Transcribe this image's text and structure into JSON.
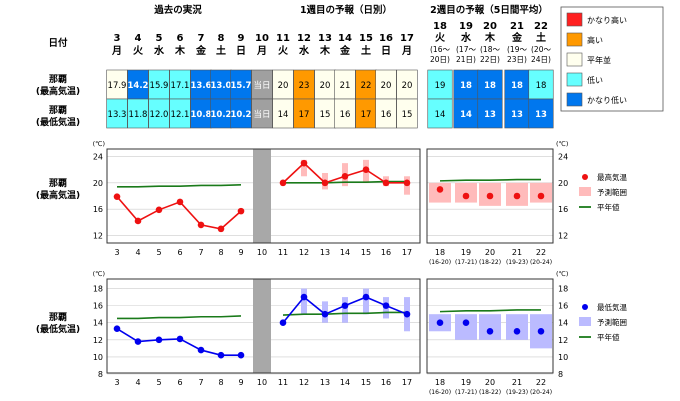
{
  "header": {
    "past_label": "過去の実況",
    "week1_label": "1週目の予報（日別）",
    "week2_label": "2週目の予報（5日間平均）",
    "date_label": "日付"
  },
  "days": [
    {
      "day": "3",
      "wd": "月"
    },
    {
      "day": "4",
      "wd": "火"
    },
    {
      "day": "5",
      "wd": "水"
    },
    {
      "day": "6",
      "wd": "木"
    },
    {
      "day": "7",
      "wd": "金"
    },
    {
      "day": "8",
      "wd": "土"
    },
    {
      "day": "9",
      "wd": "日"
    },
    {
      "day": "10",
      "wd": "月"
    },
    {
      "day": "11",
      "wd": "火"
    },
    {
      "day": "12",
      "wd": "水"
    },
    {
      "day": "13",
      "wd": "木"
    },
    {
      "day": "14",
      "wd": "金"
    },
    {
      "day": "15",
      "wd": "土"
    },
    {
      "day": "16",
      "wd": "日"
    },
    {
      "day": "17",
      "wd": "月"
    }
  ],
  "week2_days": [
    {
      "day": "18",
      "wd": "火",
      "range_a": "(16〜",
      "range_b": "20日)",
      "axis_range": "(16-20)"
    },
    {
      "day": "19",
      "wd": "水",
      "range_a": "(17〜",
      "range_b": "21日)",
      "axis_range": "(17-21)"
    },
    {
      "day": "20",
      "wd": "木",
      "range_a": "(18〜",
      "range_b": "22日)",
      "axis_range": "(18-22)"
    },
    {
      "day": "21",
      "wd": "金",
      "range_a": "(19〜",
      "range_b": "23日)",
      "axis_range": "(19-23)"
    },
    {
      "day": "22",
      "wd": "土",
      "range_a": "(20〜",
      "range_b": "24日)",
      "axis_range": "(20-24)"
    }
  ],
  "table": {
    "max_label": [
      "那覇",
      "(最高気温)"
    ],
    "min_label": [
      "那覇",
      "(最低気温)"
    ],
    "today_text": "当日",
    "max_cells": [
      {
        "v": "17.9",
        "c": "normal"
      },
      {
        "v": "14.2",
        "c": "vlow"
      },
      {
        "v": "15.9",
        "c": "low"
      },
      {
        "v": "17.1",
        "c": "low"
      },
      {
        "v": "13.6",
        "c": "vlow"
      },
      {
        "v": "13.0",
        "c": "vlow"
      },
      {
        "v": "15.7",
        "c": "vlow"
      },
      {
        "v": "当日",
        "c": "today"
      },
      {
        "v": "20",
        "c": "normal"
      },
      {
        "v": "23",
        "c": "high"
      },
      {
        "v": "20",
        "c": "normal"
      },
      {
        "v": "21",
        "c": "normal"
      },
      {
        "v": "22",
        "c": "high"
      },
      {
        "v": "20",
        "c": "normal"
      },
      {
        "v": "20",
        "c": "normal"
      }
    ],
    "min_cells": [
      {
        "v": "13.3",
        "c": "low"
      },
      {
        "v": "11.8",
        "c": "low"
      },
      {
        "v": "12.0",
        "c": "low"
      },
      {
        "v": "12.1",
        "c": "low"
      },
      {
        "v": "10.8",
        "c": "vlow"
      },
      {
        "v": "10.2",
        "c": "vlow"
      },
      {
        "v": "10.2",
        "c": "vlow"
      },
      {
        "v": "当日",
        "c": "today"
      },
      {
        "v": "14",
        "c": "normal"
      },
      {
        "v": "17",
        "c": "high"
      },
      {
        "v": "15",
        "c": "normal"
      },
      {
        "v": "16",
        "c": "normal"
      },
      {
        "v": "17",
        "c": "high"
      },
      {
        "v": "16",
        "c": "normal"
      },
      {
        "v": "15",
        "c": "normal"
      }
    ],
    "week2_max_cells": [
      {
        "v": "19",
        "c": "low"
      },
      {
        "v": "18",
        "c": "vlow"
      },
      {
        "v": "18",
        "c": "vlow"
      },
      {
        "v": "18",
        "c": "vlow"
      },
      {
        "v": "18",
        "c": "low"
      }
    ],
    "week2_min_cells": [
      {
        "v": "14",
        "c": "low"
      },
      {
        "v": "14",
        "c": "vlow"
      },
      {
        "v": "13",
        "c": "vlow"
      },
      {
        "v": "13",
        "c": "vlow"
      },
      {
        "v": "13",
        "c": "vlow"
      }
    ]
  },
  "legend": {
    "title": "",
    "items": [
      {
        "label": "かなり高い",
        "key": "vhigh"
      },
      {
        "label": "高い",
        "key": "high"
      },
      {
        "label": "平年並",
        "key": "normal"
      },
      {
        "label": "低い",
        "key": "low"
      },
      {
        "label": "かなり低い",
        "key": "vlow"
      }
    ]
  },
  "colors": {
    "vhigh": "#ff2020",
    "high": "#ff9900",
    "normal": "#ffffee",
    "low": "#66ffff",
    "vlow": "#0077ee",
    "today": "#a0a0a0",
    "max_series": "#ee1111",
    "min_series": "#0000ee",
    "normal_line": "#1a7a1a",
    "max_band": "#ffbbbb",
    "min_band": "#bbbbff",
    "frame": "#333333",
    "grid": "#cccccc"
  },
  "chart_data": [
    {
      "type": "line",
      "title": "那覇(最高気温)",
      "unit": "(℃)",
      "ylim": [
        11,
        25
      ],
      "yticks": [
        12,
        16,
        20,
        24
      ],
      "x": [
        "3",
        "4",
        "5",
        "6",
        "7",
        "8",
        "9",
        "10",
        "11",
        "12",
        "13",
        "14",
        "15",
        "16",
        "17"
      ],
      "observed": [
        17.9,
        14.2,
        15.9,
        17.1,
        13.6,
        13.0,
        15.7,
        null,
        null,
        null,
        null,
        null,
        null,
        null,
        null
      ],
      "forecast": [
        null,
        null,
        null,
        null,
        null,
        null,
        null,
        null,
        20,
        23,
        20,
        21,
        22,
        20,
        20
      ],
      "forecast_range": [
        null,
        null,
        null,
        null,
        null,
        null,
        null,
        null,
        null,
        [
          21,
          23.5
        ],
        [
          19,
          21.5
        ],
        [
          19.5,
          23
        ],
        [
          20,
          23.5
        ],
        [
          19.5,
          21
        ],
        [
          18.2,
          21
        ]
      ],
      "normal": [
        19.4,
        19.4,
        19.5,
        19.5,
        19.6,
        19.6,
        19.7,
        null,
        20.0,
        20.0,
        20.0,
        20.1,
        20.1,
        20.2,
        20.2
      ],
      "week2": {
        "x": [
          "18",
          "19",
          "20",
          "21",
          "22"
        ],
        "values": [
          19,
          18,
          18,
          18,
          18
        ],
        "range": [
          [
            17,
            20
          ],
          [
            17,
            20
          ],
          [
            16.5,
            20
          ],
          [
            16.5,
            20
          ],
          [
            17,
            20
          ]
        ],
        "normal": [
          20.3,
          20.4,
          20.4,
          20.5,
          20.5
        ]
      },
      "legend": [
        "最高気温",
        "予測範囲",
        "平年値"
      ]
    },
    {
      "type": "line",
      "title": "那覇(最低気温)",
      "unit": "(℃)",
      "ylim": [
        8,
        19
      ],
      "yticks": [
        8,
        10,
        12,
        14,
        16,
        18
      ],
      "x": [
        "3",
        "4",
        "5",
        "6",
        "7",
        "8",
        "9",
        "10",
        "11",
        "12",
        "13",
        "14",
        "15",
        "16",
        "17"
      ],
      "observed": [
        13.3,
        11.8,
        12.0,
        12.1,
        10.8,
        10.2,
        10.2,
        null,
        null,
        null,
        null,
        null,
        null,
        null,
        null
      ],
      "forecast": [
        null,
        null,
        null,
        null,
        null,
        null,
        null,
        null,
        14,
        17,
        15,
        16,
        17,
        16,
        15
      ],
      "forecast_range": [
        null,
        null,
        null,
        null,
        null,
        null,
        null,
        null,
        null,
        [
          15,
          18
        ],
        [
          14,
          16.5
        ],
        [
          14,
          17
        ],
        [
          15,
          18
        ],
        [
          14.5,
          17
        ],
        [
          13,
          17
        ]
      ],
      "normal": [
        14.5,
        14.5,
        14.6,
        14.6,
        14.7,
        14.7,
        14.8,
        null,
        14.9,
        15.0,
        15.0,
        15.1,
        15.1,
        15.2,
        15.2
      ],
      "week2": {
        "x": [
          "18",
          "19",
          "20",
          "21",
          "22"
        ],
        "values": [
          14,
          14,
          13,
          13,
          13
        ],
        "range": [
          [
            13,
            15
          ],
          [
            12,
            15
          ],
          [
            12,
            15
          ],
          [
            12,
            15
          ],
          [
            11,
            15
          ]
        ],
        "normal": [
          15.3,
          15.4,
          15.4,
          15.5,
          15.5
        ]
      },
      "legend": [
        "最低気温",
        "予測範囲",
        "平年値"
      ]
    }
  ]
}
